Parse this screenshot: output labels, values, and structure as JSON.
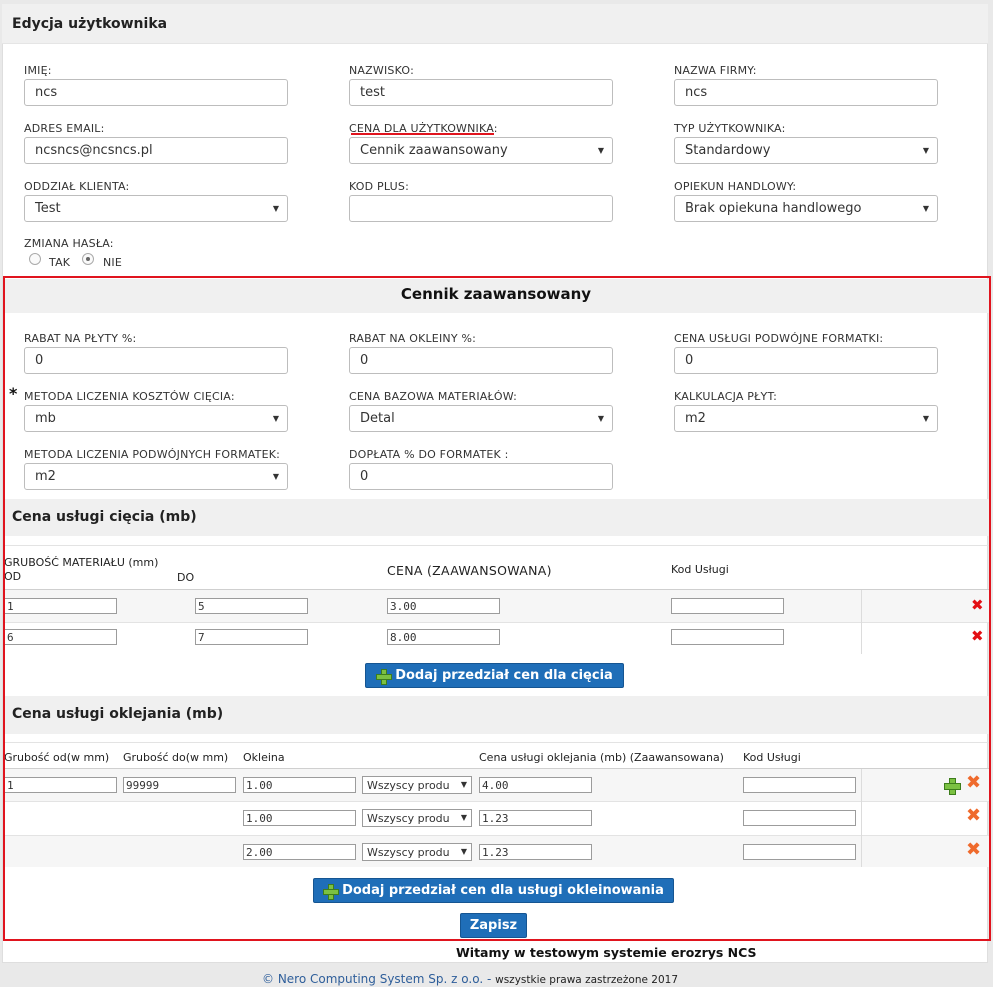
{
  "panel": {
    "title": "Edycja użytkownika"
  },
  "fields": {
    "imie": {
      "label": "IMIĘ:",
      "value": "ncs"
    },
    "nazwisko": {
      "label": "NAZWISKO:",
      "value": "test"
    },
    "nazwa_firmy": {
      "label": "NAZWA FIRMY:",
      "value": "ncs"
    },
    "email": {
      "label": "ADRES EMAIL:",
      "value": "ncsncs@ncsncs.pl"
    },
    "cena": {
      "label": "CENA DLA UŻYTKOWNIKA:",
      "value": "Cennik zaawansowany"
    },
    "typ": {
      "label": "TYP UŻYTKOWNIKA:",
      "value": "Standardowy"
    },
    "oddzial": {
      "label": "ODDZIAŁ KLIENTA:",
      "value": "Test"
    },
    "kod_plus": {
      "label": "KOD PLUS:",
      "value": ""
    },
    "opiekun": {
      "label": "OPIEKUN HANDLOWY:",
      "value": "Brak opiekuna handlowego"
    },
    "zmiana_hasla": {
      "label": "ZMIANA HASŁA:",
      "tak": "TAK",
      "nie": "NIE"
    }
  },
  "advanced": {
    "title": "Cennik zaawansowany",
    "rabat_plyty": {
      "label": "RABAT NA PŁYTY %:",
      "value": "0"
    },
    "rabat_okleiny": {
      "label": "RABAT NA OKLEINY %:",
      "value": "0"
    },
    "cena_podwojne": {
      "label": "CENA USŁUGI PODWÓJNE FORMATKI:",
      "value": "0"
    },
    "metoda_ciecia": {
      "label": "METODA LICZENIA KOSZTÓW CIĘCIA:",
      "value": "mb",
      "required": "*"
    },
    "cena_bazowa": {
      "label": "CENA BAZOWA MATERIAŁÓW:",
      "value": "Detal"
    },
    "kalkulacja": {
      "label": "KALKULACJA PŁYT:",
      "value": "m2"
    },
    "metoda_podwojnych": {
      "label": "METODA LICZENIA PODWÓJNYCH FORMATEK:",
      "value": "m2"
    },
    "doplata": {
      "label": "DOPŁATA % DO FORMATEK :",
      "value": "0"
    }
  },
  "ciecie": {
    "title": "Cena usługi cięcia (mb)",
    "headers": {
      "grubosc": "GRUBOŚĆ MATERIAŁU (mm)",
      "od": "OD",
      "do": "DO",
      "cena": "CENA (ZAAWANSOWANA)",
      "kod": "Kod Usługi"
    },
    "rows": [
      {
        "od": "1",
        "do": "5",
        "cena": "3.00",
        "kod": ""
      },
      {
        "od": "6",
        "do": "7",
        "cena": "8.00",
        "kod": ""
      }
    ],
    "add_button": "Dodaj przedział cen dla cięcia"
  },
  "oklejanie": {
    "title": "Cena usługi oklejania (mb)",
    "headers": {
      "od": "Grubość od(w mm)",
      "do": "Grubość do(w mm)",
      "okleina": "Okleina",
      "cena": "Cena usługi oklejania (mb) (Zaawansowana)",
      "kod": "Kod Usługi"
    },
    "rows": [
      {
        "od": "1",
        "do": "99999",
        "okleina": "1.00",
        "produkt": "Wszyscy produ",
        "cena": "4.00",
        "kod": ""
      },
      {
        "okleina": "1.00",
        "produkt": "Wszyscy produ",
        "cena": "1.23",
        "kod": ""
      },
      {
        "okleina": "2.00",
        "produkt": "Wszyscy produ",
        "cena": "1.23",
        "kod": ""
      }
    ],
    "add_button": "Dodaj przedział cen dla usługi okleinowania"
  },
  "save_button": "Zapisz",
  "welcome": "Witamy w testowym systemie erozrys NCS",
  "footer": {
    "company": "© Nero Computing System Sp. z o.o. -",
    "rights": "wszystkie prawa zastrzeżone 2017"
  },
  "colors": {
    "accent": "#1f6eb8",
    "highlight": "#e0141e"
  }
}
